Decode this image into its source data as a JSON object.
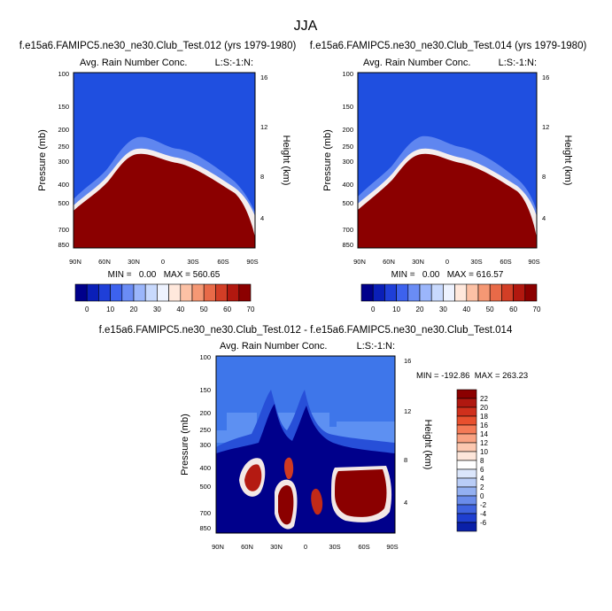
{
  "figure": {
    "season_title": "JJA",
    "colors": {
      "dark_red": "#8b0000",
      "dark_blue": "#00008b",
      "mid_blue": "#1f4fe0"
    }
  },
  "chart_data": [
    {
      "type": "heatmap",
      "title": "f.e15a6.FAMIPC5.ne30_ne30.Club_Test.012 (yrs 1979-1980)",
      "subtitle_left": "Avg. Rain Number Conc.",
      "subtitle_right": "L:S:-1:N:",
      "ylabel": "Pressure (mb)",
      "ylabel_right": "Height (km)",
      "yticks": [
        100,
        150,
        200,
        250,
        300,
        400,
        500,
        700,
        850
      ],
      "yticks_right": [
        16,
        12,
        8,
        4
      ],
      "xticks": [
        "90N",
        "60N",
        "30N",
        "0",
        "30S",
        "60S",
        "90S"
      ],
      "stats_text": "MIN =   0.00   MAX = 560.65",
      "colorbar": {
        "levels": [
          "0",
          "10",
          "20",
          "30",
          "40",
          "50",
          "60",
          "70"
        ],
        "colors": [
          "#00008b",
          "#0a1fb8",
          "#1f3fd8",
          "#3d62ee",
          "#6a8cf5",
          "#9bb6fb",
          "#c8d9fd",
          "#eef3ff",
          "#ffe8dc",
          "#fcc1a5",
          "#f59874",
          "#e86a48",
          "#d23e26",
          "#b2180f",
          "#8b0000"
        ]
      }
    },
    {
      "type": "heatmap",
      "title": "f.e15a6.FAMIPC5.ne30_ne30.Club_Test.014 (yrs 1979-1980)",
      "subtitle_left": "Avg. Rain Number Conc.",
      "subtitle_right": "L:S:-1:N:",
      "ylabel": "Pressure (mb)",
      "ylabel_right": "Height (km)",
      "yticks": [
        100,
        150,
        200,
        250,
        300,
        400,
        500,
        700,
        850
      ],
      "yticks_right": [
        16,
        12,
        8,
        4
      ],
      "xticks": [
        "90N",
        "60N",
        "30N",
        "0",
        "30S",
        "60S",
        "90S"
      ],
      "stats_text": "MIN =   0.00   MAX = 616.57",
      "colorbar": {
        "levels": [
          "0",
          "10",
          "20",
          "30",
          "40",
          "50",
          "60",
          "70"
        ],
        "colors": [
          "#00008b",
          "#0a1fb8",
          "#1f3fd8",
          "#3d62ee",
          "#6a8cf5",
          "#9bb6fb",
          "#c8d9fd",
          "#eef3ff",
          "#ffe8dc",
          "#fcc1a5",
          "#f59874",
          "#e86a48",
          "#d23e26",
          "#b2180f",
          "#8b0000"
        ]
      }
    },
    {
      "type": "heatmap",
      "title": "f.e15a6.FAMIPC5.ne30_ne30.Club_Test.012 - f.e15a6.FAMIPC5.ne30_ne30.Club_Test.014",
      "subtitle_left": "Avg. Rain Number Conc.",
      "subtitle_right": "L:S:-1:N:",
      "ylabel": "Pressure (mb)",
      "ylabel_right": "Height (km)",
      "yticks": [
        100,
        150,
        200,
        250,
        300,
        400,
        500,
        700,
        850
      ],
      "yticks_right": [
        16,
        12,
        8,
        4
      ],
      "xticks": [
        "90N",
        "60N",
        "30N",
        "0",
        "30S",
        "60S",
        "90S"
      ],
      "stats_text": "MIN = -192.86  MAX = 263.23",
      "colorbar": {
        "levels": [
          "22",
          "20",
          "18",
          "16",
          "14",
          "12",
          "10",
          "8",
          "6",
          "4",
          "2",
          "0",
          "-2",
          "-4",
          "-6"
        ],
        "colors": [
          "#8b0000",
          "#b01810",
          "#d0301c",
          "#e8502e",
          "#f47a56",
          "#f9a282",
          "#fcc8b0",
          "#fde6da",
          "#ffffff",
          "#dbe6fb",
          "#b9cdf7",
          "#93b0f1",
          "#6a8cea",
          "#3f63df",
          "#1f3fd0",
          "#0a20a8"
        ]
      }
    }
  ]
}
